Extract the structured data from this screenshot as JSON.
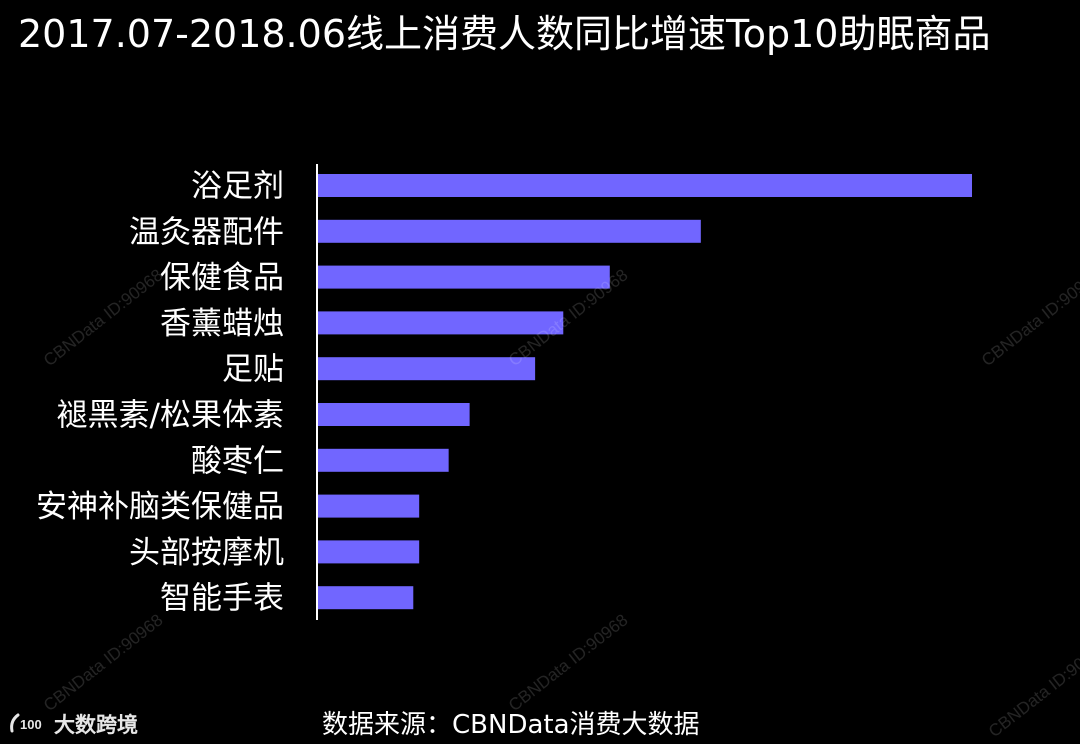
{
  "title": "2017.07-2018.06线上消费人数同比增速Top10助眠商品",
  "source": "数据来源：CBNData消费大数据",
  "watermark_text": "CBNData ID:90968",
  "brand": {
    "name": "大数跨境",
    "logo_text": "100"
  },
  "colors": {
    "background": "#000000",
    "bar": "#7166FF",
    "axis": "#ffffff",
    "text": "#ffffff"
  },
  "chart_data": {
    "type": "bar",
    "orientation": "horizontal",
    "title": "2017.07-2018.06线上消费人数同比增速Top10助眠商品",
    "xlabel": "",
    "ylabel": "",
    "value_unit": "relative growth (no axis shown)",
    "categories": [
      "浴足剂",
      "温灸器配件",
      "保健食品",
      "香薰蜡烛",
      "足贴",
      "褪黑素/松果体素",
      "酸枣仁",
      "安神补脑类保健品",
      "头部按摩机",
      "智能手表"
    ],
    "values": [
      100,
      58.6,
      44.7,
      37.6,
      33.3,
      23.3,
      20.1,
      15.6,
      15.6,
      14.7
    ],
    "xlim": [
      0,
      100
    ],
    "grid": false,
    "legend": "none"
  }
}
